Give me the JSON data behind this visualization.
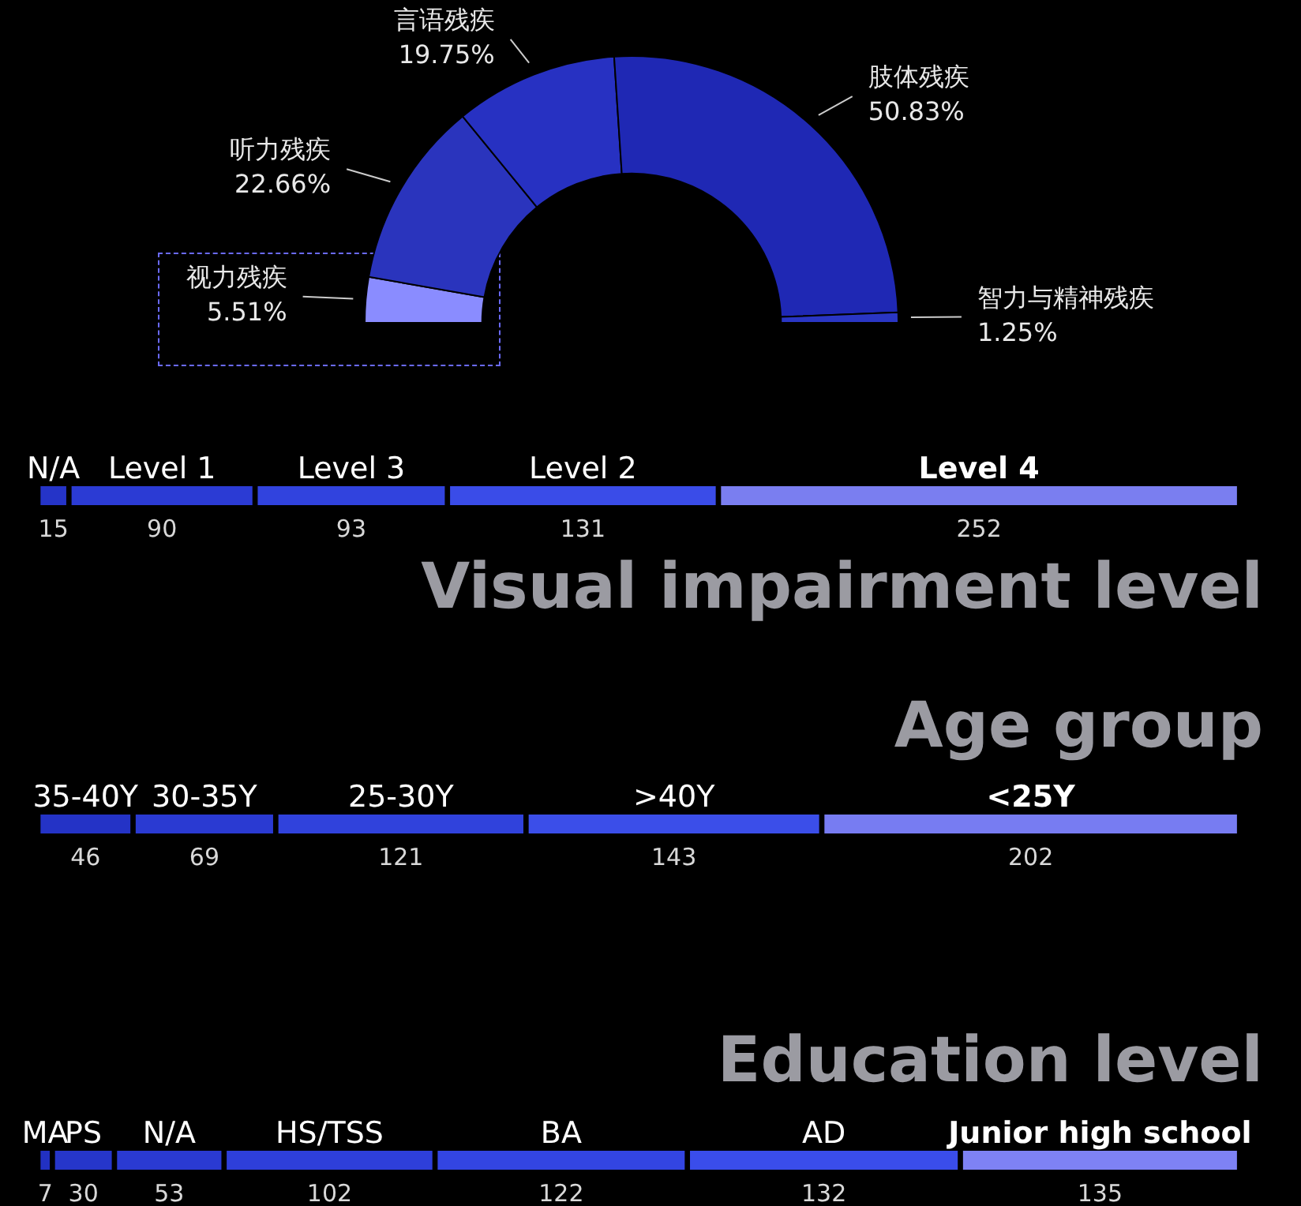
{
  "chart_data": [
    {
      "type": "donut",
      "categories": [
        "视力残疾",
        "听力残疾",
        "言语残疾",
        "肢体残疾",
        "智力与精神残疾"
      ],
      "values": [
        5.51,
        22.66,
        19.75,
        50.83,
        1.25
      ],
      "value_labels": [
        "5.51%",
        "22.66%",
        "19.75%",
        "50.83%",
        "1.25%"
      ],
      "colors": [
        "#8a8cff",
        "#2a34bd",
        "#2731c2",
        "#1f28b4",
        "#2a36c4"
      ]
    },
    {
      "type": "other",
      "title": "Visual impairment level",
      "data_labels": true,
      "colors": [
        "#2534c8",
        "#2b3bd4",
        "#3143de",
        "#3a4ce8",
        "#7a7ef0"
      ],
      "series": [
        {
          "name": "N/A",
          "values": [
            15
          ]
        },
        {
          "name": "Level 1",
          "values": [
            90
          ]
        },
        {
          "name": "Level 3",
          "values": [
            93
          ]
        },
        {
          "name": "Level 2",
          "values": [
            131
          ]
        },
        {
          "name": "Level 4",
          "values": [
            252
          ]
        }
      ]
    },
    {
      "type": "other",
      "title": "Age group",
      "data_labels": true,
      "colors": [
        "#2433c6",
        "#2a3ad2",
        "#3042dc",
        "#3b4ee9",
        "#777cf2"
      ],
      "series": [
        {
          "name": "35-40Y",
          "values": [
            46
          ]
        },
        {
          "name": "30-35Y",
          "values": [
            69
          ]
        },
        {
          "name": "25-30Y",
          "values": [
            121
          ]
        },
        {
          "name": ">40Y",
          "values": [
            143
          ]
        },
        {
          "name": "<25Y",
          "values": [
            202
          ]
        }
      ]
    },
    {
      "type": "other",
      "title": "Education level",
      "data_labels": true,
      "colors": [
        "#2231c2",
        "#2636ca",
        "#2a3ad2",
        "#2e3fda",
        "#3345e2",
        "#3a4deb",
        "#7e82f4"
      ],
      "series": [
        {
          "name": "MA",
          "values": [
            7
          ]
        },
        {
          "name": "PS",
          "values": [
            30
          ]
        },
        {
          "name": "N/A",
          "values": [
            53
          ]
        },
        {
          "name": "HS/TSS",
          "values": [
            102
          ]
        },
        {
          "name": "BA",
          "values": [
            122
          ]
        },
        {
          "name": "AD",
          "values": [
            132
          ]
        },
        {
          "name": "Junior high school",
          "values": [
            135
          ]
        }
      ]
    }
  ]
}
